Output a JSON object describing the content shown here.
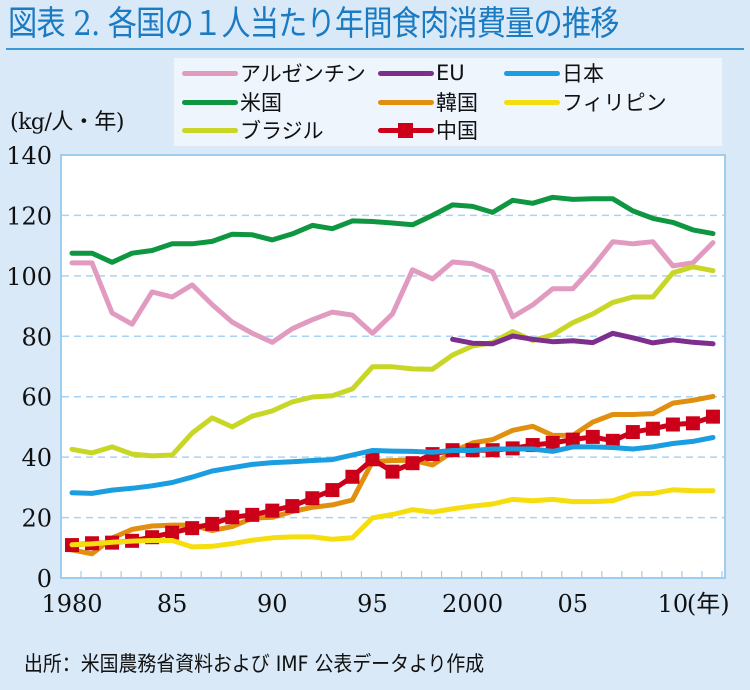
{
  "title": "図表 2. 各国の１人当たり年間食肉消費量の推移",
  "unit_label": "(kg/人・年)",
  "source": "出所：米国農務省資料および IMF 公表データより作成",
  "chart_data": {
    "type": "line",
    "title": "図表 2. 各国の１人当たり年間食肉消費量の推移",
    "xlabel": "(年)",
    "ylabel": "(kg/人・年)",
    "ylim": [
      0,
      140
    ],
    "xlim": [
      1980,
      2012
    ],
    "grid": "horizontal-dashed",
    "legend_position": "top-right",
    "yticks": [
      0,
      20,
      40,
      60,
      80,
      100,
      120,
      140
    ],
    "ytick_labels": [
      "0",
      "20",
      "40",
      "60",
      "80",
      "100",
      "120",
      "140"
    ],
    "xticks": [
      1980,
      1985,
      1990,
      1995,
      2000,
      2005,
      2010
    ],
    "xtick_labels": [
      "1980",
      "85",
      "90",
      "95",
      "2000",
      "05",
      "10"
    ],
    "xtick_suffix": "(年)",
    "x": [
      1980,
      1981,
      1982,
      1983,
      1984,
      1985,
      1986,
      1987,
      1988,
      1989,
      1990,
      1991,
      1992,
      1993,
      1994,
      1995,
      1996,
      1997,
      1998,
      1999,
      2000,
      2001,
      2002,
      2003,
      2004,
      2005,
      2006,
      2007,
      2008,
      2009,
      2010,
      2011,
      2012
    ],
    "series": [
      {
        "name": "アルゼンチン",
        "color": "#e29bc0",
        "marker": false,
        "values": [
          104.3,
          104.3,
          87.7,
          84,
          94.7,
          93,
          97,
          90.5,
          84.7,
          81,
          78,
          82.5,
          85.5,
          88,
          87,
          81,
          87.4,
          102,
          99,
          104.6,
          104,
          101.3,
          86.4,
          90.4,
          95.7,
          95.7,
          103,
          111.3,
          110.6,
          111.3,
          103.3,
          104.3,
          111
        ]
      },
      {
        "name": "米国",
        "color": "#0f9640",
        "marker": false,
        "values": [
          107.5,
          107.5,
          104.5,
          107.5,
          108.4,
          110.6,
          110.6,
          111.4,
          113.8,
          113.6,
          111.9,
          113.9,
          116.7,
          115.6,
          118.2,
          118,
          117.5,
          116.9,
          120,
          123.5,
          123,
          121,
          125,
          124,
          126,
          125.3,
          125.5,
          125.5,
          121.5,
          119,
          117.7,
          115.2,
          114
        ]
      },
      {
        "name": "ブラジル",
        "color": "#c8d626",
        "marker": false,
        "values": [
          42.6,
          41.4,
          43.4,
          41,
          40.4,
          40.7,
          48,
          53,
          50,
          53.6,
          55.3,
          58.3,
          59.9,
          60.3,
          62.6,
          69.9,
          69.9,
          69.2,
          69.1,
          73.8,
          76.8,
          77.9,
          81.6,
          78.6,
          80.5,
          84.5,
          87.4,
          91.2,
          93,
          93,
          101,
          103,
          101.7
        ]
      },
      {
        "name": "EU",
        "color": "#7e2e8c",
        "marker": false,
        "values": [
          null,
          null,
          null,
          null,
          null,
          null,
          null,
          null,
          null,
          null,
          null,
          null,
          null,
          null,
          null,
          null,
          null,
          null,
          null,
          79,
          77.7,
          77.5,
          80.1,
          79,
          78.2,
          78.5,
          77.9,
          81,
          79.5,
          77.8,
          78.8,
          78,
          77.5
        ]
      },
      {
        "name": "韓国",
        "color": "#e0900e",
        "marker": false,
        "values": [
          9.3,
          8,
          13.2,
          16.1,
          17.2,
          17.5,
          17.5,
          15.7,
          17,
          19.8,
          20.1,
          22,
          23.4,
          24.2,
          25.8,
          38.5,
          38.9,
          39,
          37.4,
          41.8,
          44.7,
          45.8,
          48.9,
          50.2,
          47.2,
          47.2,
          51.6,
          54.1,
          54.1,
          54.4,
          57.9,
          58.8,
          60.1
        ]
      },
      {
        "name": "中国",
        "color": "#cc0018",
        "marker": true,
        "values": [
          10.9,
          11.5,
          11.7,
          12.3,
          13.5,
          15,
          16.5,
          17.9,
          20.1,
          20.9,
          22.3,
          23.8,
          26.4,
          29.1,
          33.5,
          39.3,
          35.2,
          38,
          41,
          42.3,
          42.3,
          42.3,
          42.9,
          44,
          44.7,
          45.8,
          46.7,
          45.4,
          48.3,
          49.4,
          50.8,
          51.2,
          53.4
        ]
      },
      {
        "name": "日本",
        "color": "#1b9ee0",
        "marker": false,
        "values": [
          28.2,
          28,
          29.1,
          29.7,
          30.5,
          31.6,
          33.4,
          35.4,
          36.5,
          37.6,
          38.2,
          38.5,
          38.9,
          39.2,
          40.7,
          42.2,
          42,
          41.9,
          41.6,
          42.2,
          42.2,
          42.7,
          42.7,
          42.7,
          41.9,
          43.4,
          43.4,
          43.2,
          42.7,
          43.4,
          44.5,
          45.2,
          46.5
        ]
      },
      {
        "name": "フィリピン",
        "color": "#f6dd0e",
        "marker": false,
        "values": [
          11,
          11.3,
          11.8,
          12.2,
          12.4,
          12.4,
          10.3,
          10.5,
          11.4,
          12.5,
          13.3,
          13.6,
          13.6,
          12.8,
          13.3,
          19.9,
          21,
          22.6,
          21.8,
          22.9,
          23.8,
          24.5,
          26,
          25.6,
          26,
          25.3,
          25.3,
          25.6,
          27.8,
          28,
          29.2,
          28.9,
          28.9
        ]
      }
    ],
    "legend": [
      {
        "label": "アルゼンチン",
        "color": "#e29bc0"
      },
      {
        "label": "EU",
        "color": "#7e2e8c"
      },
      {
        "label": "日本",
        "color": "#1b9ee0"
      },
      {
        "label": "米国",
        "color": "#0f9640"
      },
      {
        "label": "韓国",
        "color": "#e0900e"
      },
      {
        "label": "フィリピン",
        "color": "#f6dd0e"
      },
      {
        "label": "ブラジル",
        "color": "#c8d626"
      },
      {
        "label": "中国",
        "color": "#cc0018",
        "marker": true
      }
    ]
  },
  "colors": {
    "background": "#d9e9f8",
    "title": "#1a7ac2",
    "legend_bg": "#eef5fd",
    "grid": "#a9d2f2",
    "axis": "#9fcdee"
  }
}
